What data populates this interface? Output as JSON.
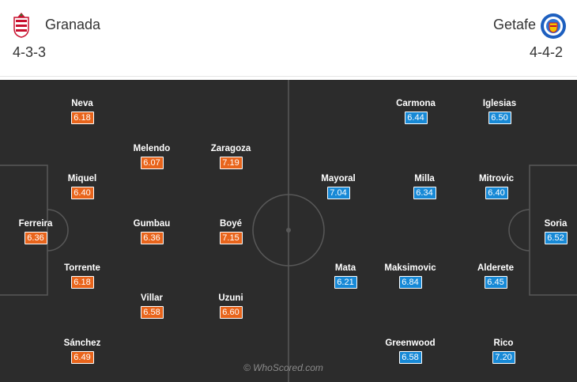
{
  "home": {
    "name": "Granada",
    "formation": "4-3-3",
    "color": "#e8641b",
    "crest": "granada-crest-icon",
    "players": [
      {
        "name": "Neva",
        "rating": "6.18"
      },
      {
        "name": "Melendo",
        "rating": "6.07"
      },
      {
        "name": "Zaragoza",
        "rating": "7.19"
      },
      {
        "name": "Miquel",
        "rating": "6.40"
      },
      {
        "name": "Ferreira",
        "rating": "6.36"
      },
      {
        "name": "Gumbau",
        "rating": "6.36"
      },
      {
        "name": "Boyé",
        "rating": "7.15"
      },
      {
        "name": "Torrente",
        "rating": "6.18"
      },
      {
        "name": "Villar",
        "rating": "6.58"
      },
      {
        "name": "Uzuni",
        "rating": "6.60"
      },
      {
        "name": "Sánchez",
        "rating": "6.49"
      }
    ]
  },
  "away": {
    "name": "Getafe",
    "formation": "4-4-2",
    "color": "#1789d6",
    "crest": "getafe-crest-icon",
    "players": [
      {
        "name": "Carmona",
        "rating": "6.44"
      },
      {
        "name": "Iglesias",
        "rating": "6.50"
      },
      {
        "name": "Mayoral",
        "rating": "7.04"
      },
      {
        "name": "Milla",
        "rating": "6.34"
      },
      {
        "name": "Mitrovic",
        "rating": "6.40"
      },
      {
        "name": "Soria",
        "rating": "6.52"
      },
      {
        "name": "Mata",
        "rating": "6.21"
      },
      {
        "name": "Maksimovic",
        "rating": "6.84"
      },
      {
        "name": "Alderete",
        "rating": "6.45"
      },
      {
        "name": "Greenwood",
        "rating": "6.58"
      },
      {
        "name": "Rico",
        "rating": "7.20"
      }
    ]
  },
  "pitch_color": "#2c2c2c",
  "watermark": "© WhoScored.com"
}
